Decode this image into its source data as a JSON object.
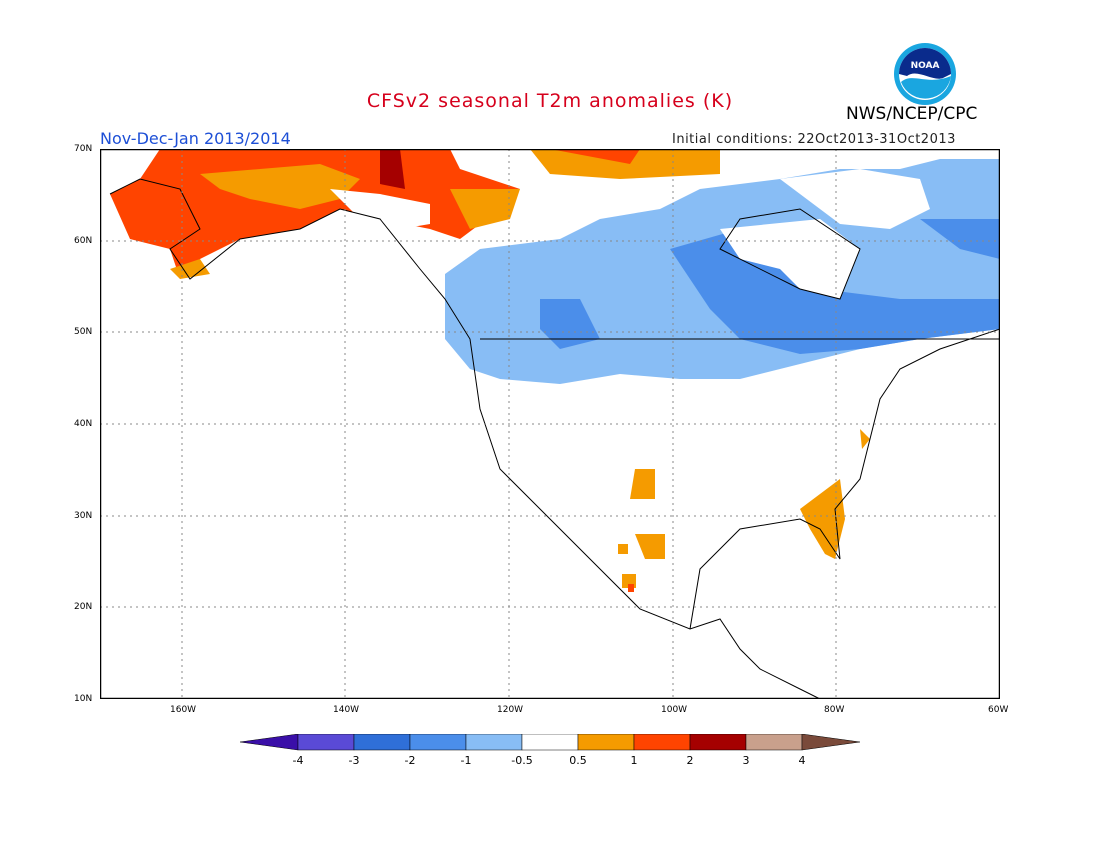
{
  "title": "CFSv2 seasonal T2m anomalies (K)",
  "agency": "NWS/NCEP/CPC",
  "period": "Nov-Dec-Jan 2013/2014",
  "initial_conditions": "Initial conditions: 22Oct2013-31Oct2013",
  "logo": {
    "text": "NOAA",
    "icon": "noaa-logo"
  },
  "map": {
    "lat_labels": [
      "70N",
      "60N",
      "50N",
      "40N",
      "30N",
      "20N",
      "10N"
    ],
    "lon_labels": [
      "160W",
      "140W",
      "120W",
      "100W",
      "80W",
      "60W"
    ]
  },
  "legend": {
    "labels": [
      "-4",
      "-3",
      "-2",
      "-1",
      "-0.5",
      "0.5",
      "1",
      "2",
      "3",
      "4"
    ],
    "colors": [
      "#3a0fa8",
      "#5a4ad6",
      "#2f6fd8",
      "#4b8eea",
      "#88bdf5",
      "#ffffff",
      "#f59b00",
      "#ff4400",
      "#a50000",
      "#c9a08c",
      "#7a4a3a"
    ]
  },
  "chart_data": {
    "type": "heatmap",
    "title": "CFSv2 seasonal T2m anomalies (K)",
    "variable": "T2m anomaly",
    "units": "K",
    "period": "Nov-Dec-Jan 2013/2014",
    "lat_range": [
      10,
      70
    ],
    "lon_range": [
      -170,
      -60
    ],
    "regions": [
      {
        "area": "Alaska / Yukon / northern Canada",
        "anomaly_range": [
          0.5,
          3
        ],
        "sign": "warm"
      },
      {
        "area": "Central and eastern Canada, northern US border",
        "anomaly_range": [
          -2,
          -0.5
        ],
        "sign": "cold"
      },
      {
        "area": "Florida and southeast coast",
        "anomaly_range": [
          0.5,
          1
        ],
        "sign": "warm"
      },
      {
        "area": "Southwestern US / northern Mexico patches",
        "anomaly_range": [
          0.5,
          2
        ],
        "sign": "warm"
      },
      {
        "area": "Most of contiguous US",
        "anomaly_range": [
          -0.5,
          0.5
        ],
        "sign": "neutral"
      }
    ]
  }
}
